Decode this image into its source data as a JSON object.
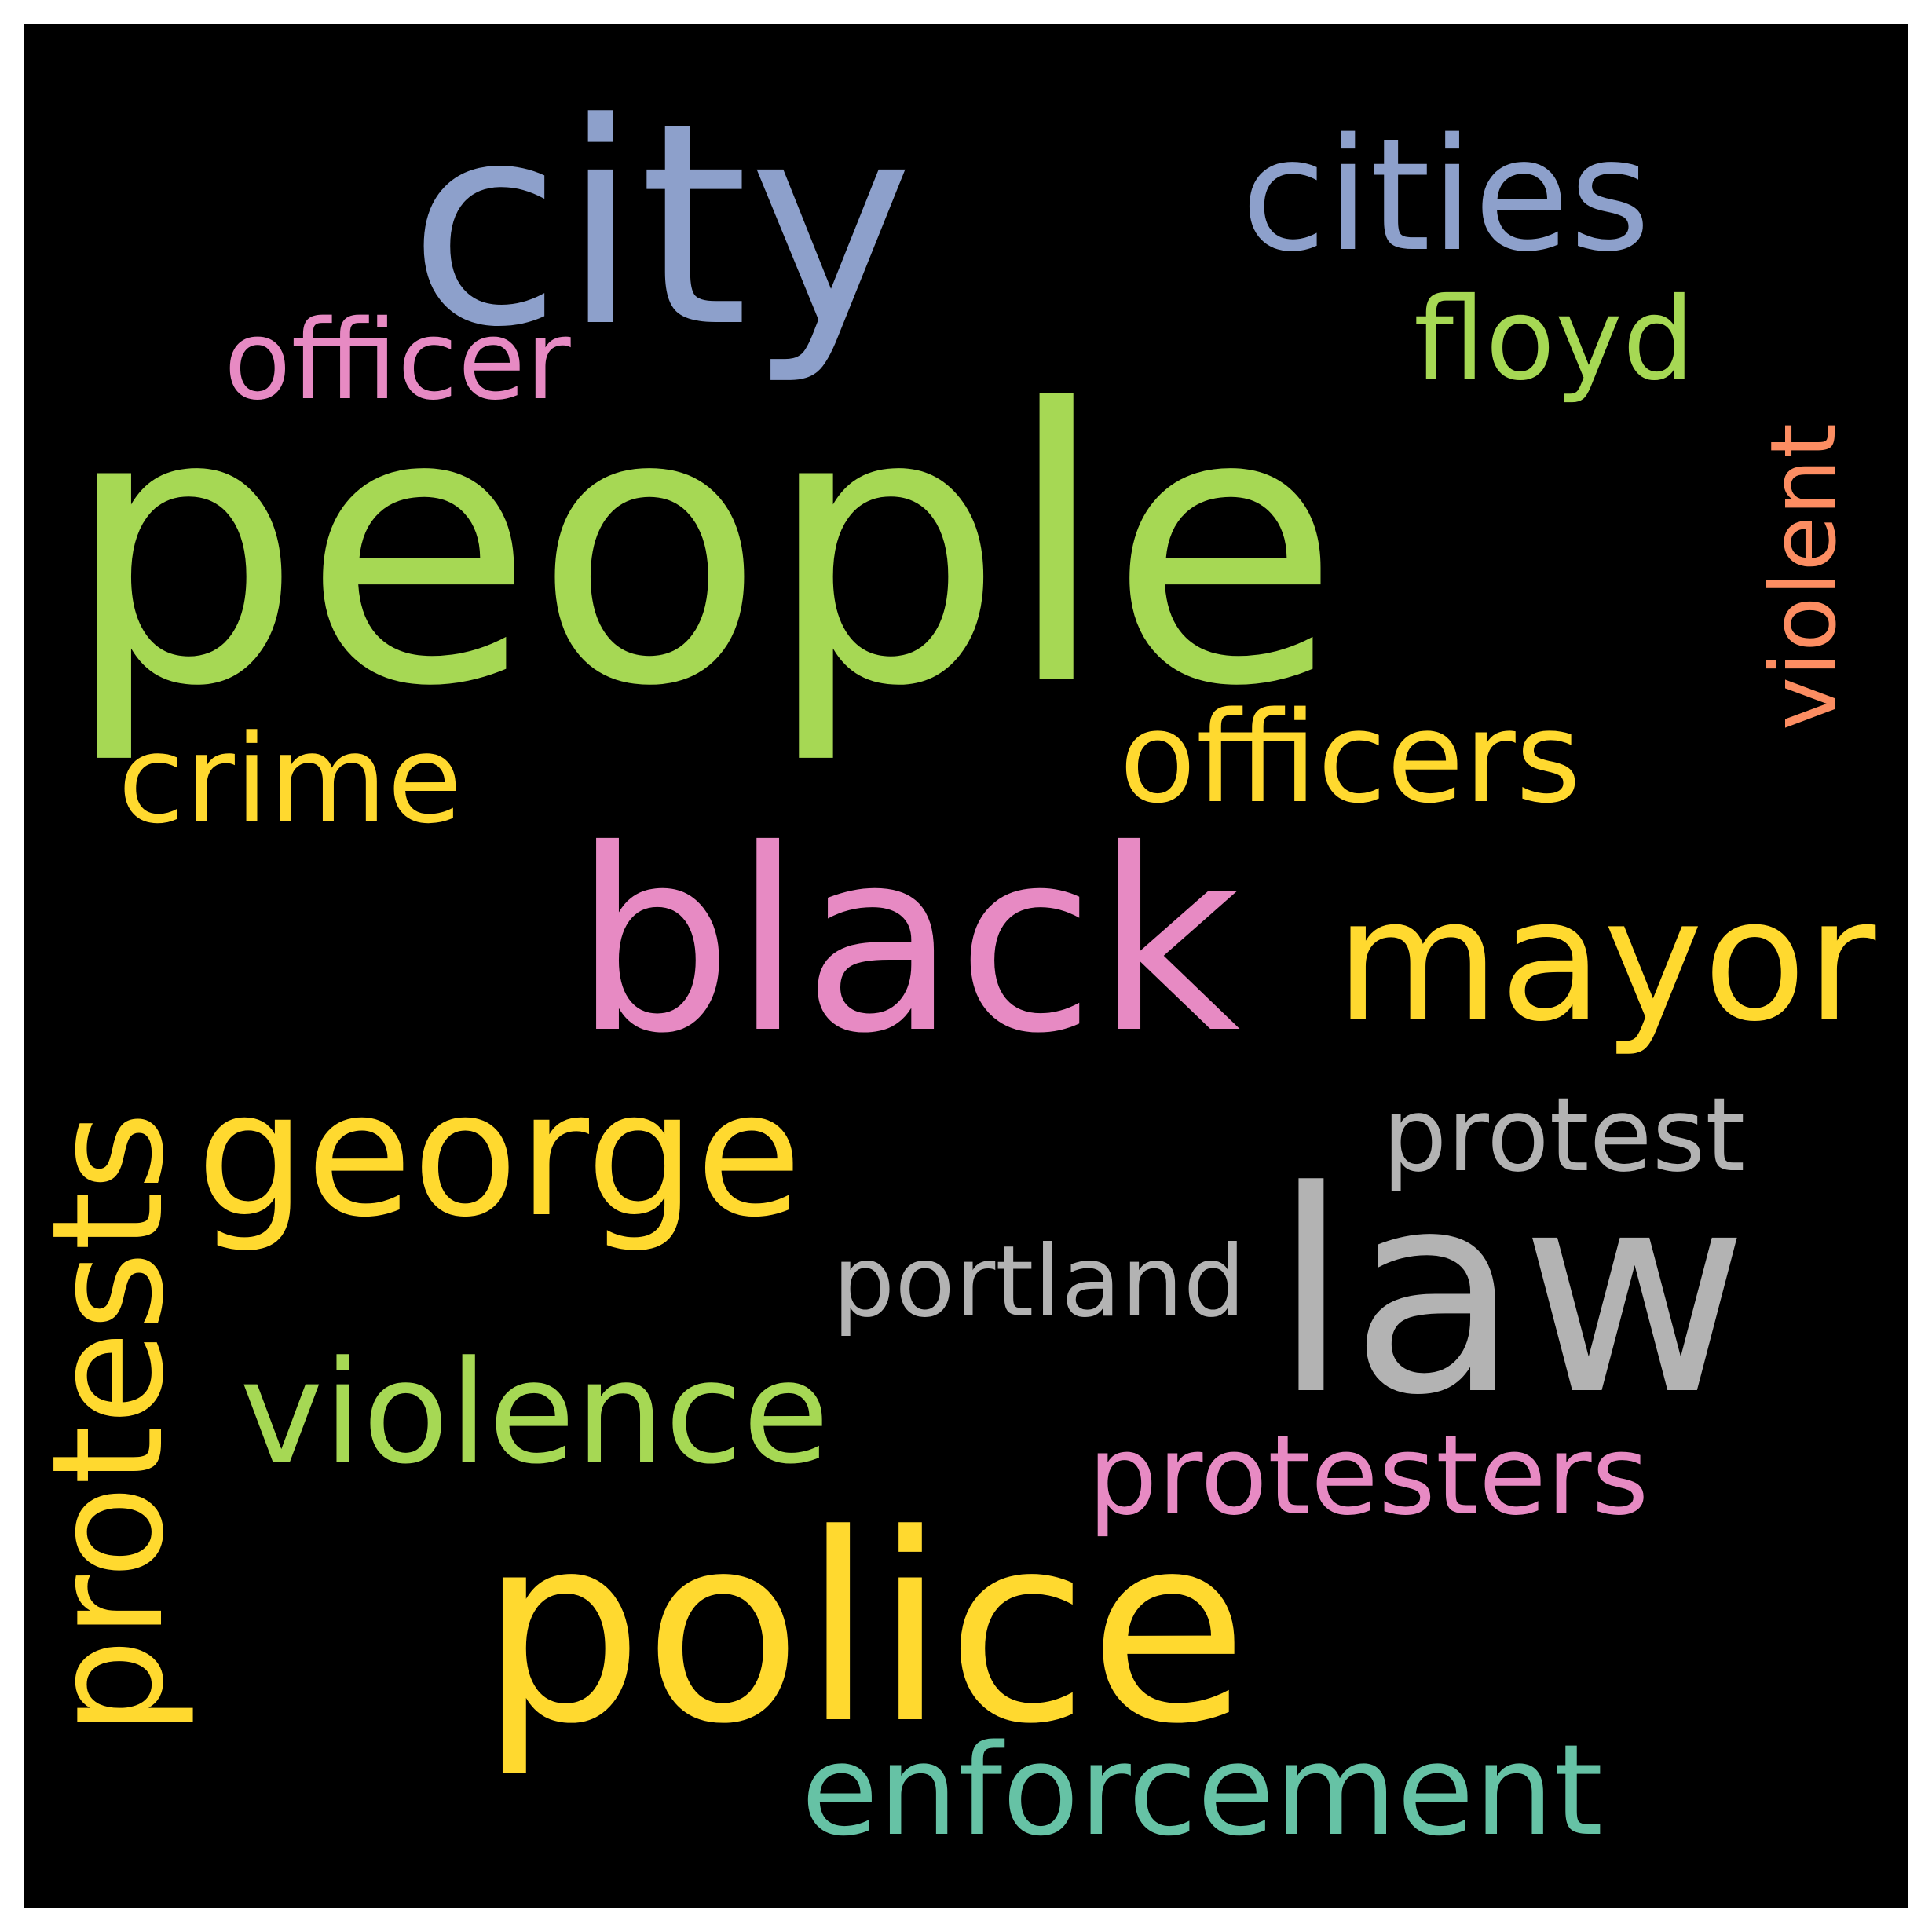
{
  "words": {
    "people": {
      "text": "people",
      "color": "#a6d854"
    },
    "city": {
      "text": "city",
      "color": "#8da0cb"
    },
    "cities": {
      "text": "cities",
      "color": "#8da0cb"
    },
    "officer": {
      "text": "officer",
      "color": "#e78ac3"
    },
    "floyd": {
      "text": "floyd",
      "color": "#a6d854"
    },
    "violent": {
      "text": "violent",
      "color": "#fc8d62"
    },
    "crime": {
      "text": "crime",
      "color": "#ffd92f"
    },
    "officers": {
      "text": "officers",
      "color": "#ffd92f"
    },
    "black": {
      "text": "black",
      "color": "#e78ac3"
    },
    "mayor": {
      "text": "mayor",
      "color": "#ffd92f"
    },
    "george": {
      "text": "george",
      "color": "#ffd92f"
    },
    "protests": {
      "text": "protests",
      "color": "#ffd92f"
    },
    "protest": {
      "text": "protest",
      "color": "#b3b3b3"
    },
    "law": {
      "text": "law",
      "color": "#b3b3b3"
    },
    "portland": {
      "text": "portland",
      "color": "#b3b3b3"
    },
    "violence": {
      "text": "violence",
      "color": "#a6d854"
    },
    "protesters": {
      "text": "protesters",
      "color": "#e78ac3"
    },
    "police": {
      "text": "police",
      "color": "#ffd92f"
    },
    "enforcement": {
      "text": "enforcement",
      "color": "#66c2a5"
    }
  }
}
